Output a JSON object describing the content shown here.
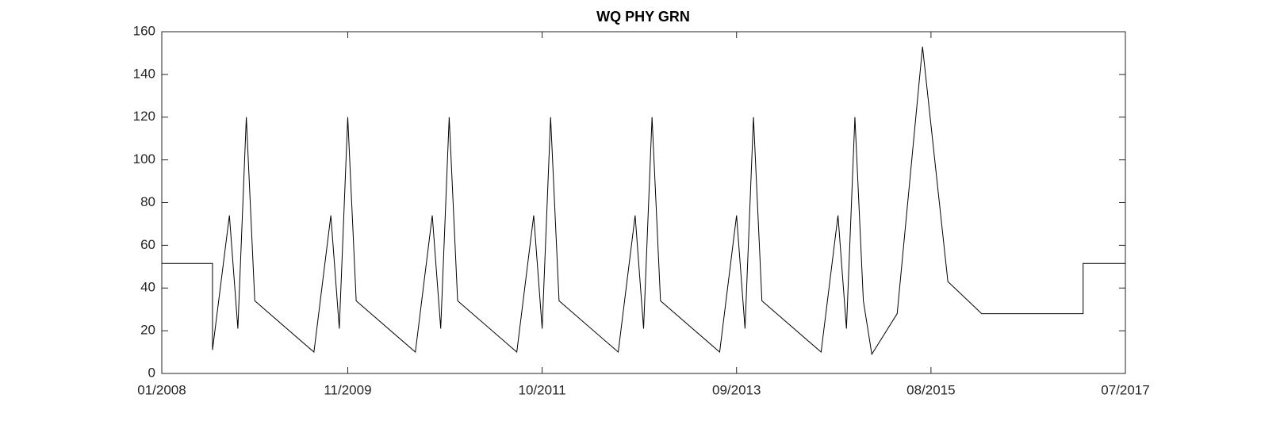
{
  "chart_data": {
    "type": "line",
    "title": "WQ PHY GRN",
    "x": [
      "01/2008",
      "07/2008",
      "07/2008",
      "09/2008",
      "10/2008",
      "11/2008",
      "12/2008",
      "07/2009",
      "09/2009",
      "10/2009",
      "11/2009",
      "12/2009",
      "07/2010",
      "09/2010",
      "10/2010",
      "11/2010",
      "12/2010",
      "07/2011",
      "09/2011",
      "10/2011",
      "11/2011",
      "12/2011",
      "07/2012",
      "09/2012",
      "10/2012",
      "11/2012",
      "12/2012",
      "07/2013",
      "09/2013",
      "10/2013",
      "11/2013",
      "12/2013",
      "07/2014",
      "09/2014",
      "10/2014",
      "11/2014",
      "12/2014",
      "01/2015",
      "04/2015",
      "07/2015",
      "10/2015",
      "02/2016",
      "02/2017",
      "02/2017",
      "07/2017"
    ],
    "series": [
      {
        "color": "#000000",
        "values": [
          51.5,
          51.5,
          11,
          74,
          21,
          120,
          34,
          10,
          74,
          21,
          120,
          34,
          10,
          74,
          21,
          120,
          34,
          10,
          74,
          21,
          120,
          34,
          10,
          74,
          21,
          120,
          34,
          10,
          74,
          21,
          120,
          34,
          10,
          74,
          21,
          120,
          34,
          9,
          28,
          153,
          43,
          28,
          28,
          51.5,
          51.5
        ]
      }
    ],
    "xlim": [
      "01/2008",
      "07/2017"
    ],
    "xticks": [
      "01/2008",
      "11/2009",
      "10/2011",
      "09/2013",
      "08/2015",
      "07/2017"
    ],
    "ylim": [
      0,
      160
    ],
    "yticks": [
      0,
      20,
      40,
      60,
      80,
      100,
      120,
      140,
      160
    ]
  }
}
